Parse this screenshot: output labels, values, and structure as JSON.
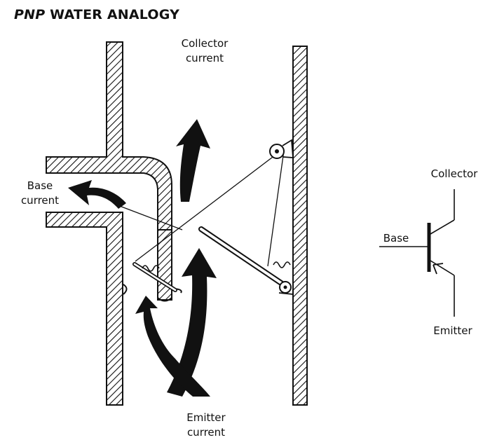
{
  "title": {
    "prefix": "PNP",
    "rest": " WATER ANALOGY"
  },
  "labels": {
    "collector_current": [
      "Collector",
      "current"
    ],
    "base_current": [
      "Base",
      "current"
    ],
    "emitter_current": [
      "Emitter",
      "current"
    ],
    "symbol_collector": "Collector",
    "symbol_base": "Base",
    "symbol_emitter": "Emitter"
  },
  "colors": {
    "ink": "#111111",
    "background": "#ffffff"
  }
}
